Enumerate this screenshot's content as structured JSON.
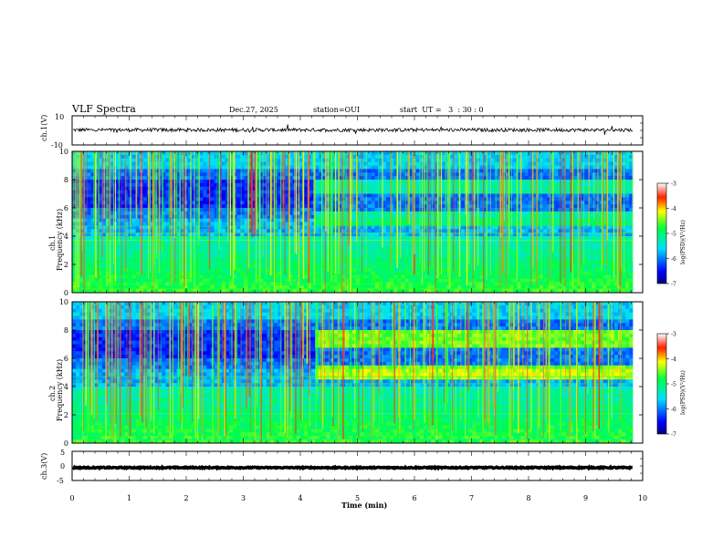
{
  "header": {
    "title": "VLF Spectra",
    "date": "Dec.27, 2025",
    "station": "station=OUI",
    "start": "start  UT =   3  : 30 : 0"
  },
  "chart_data": [
    {
      "type": "line",
      "name": "ch1-waveform",
      "ylabel": "ch.1(V)",
      "ylim": [
        -10,
        10
      ],
      "yticks": [
        "10",
        "-10"
      ],
      "baseline": 0.3,
      "note": "continuous noisy waveform, amplitude about +-1 V with sparse spikes"
    },
    {
      "type": "heatmap",
      "name": "ch1-spectrogram",
      "ylabel": "ch.1\nFrequency (kHz)",
      "ylim": [
        0,
        10
      ],
      "yticks": [
        "0",
        "2",
        "4",
        "6",
        "8",
        "10"
      ],
      "band_change_min": 4.25,
      "bands_after_change_khz": [
        [
          2.3,
          2.8
        ],
        [
          4.6,
          5.0
        ]
      ],
      "colorbar": {
        "label": "log(PSD)(V²/Hz)",
        "range": [
          -7,
          -3
        ],
        "ticks": [
          "-3",
          "-4",
          "-5",
          "-6",
          "-7"
        ]
      }
    },
    {
      "type": "heatmap",
      "name": "ch2-spectrogram",
      "ylabel": "ch.2\nFrequency (kHz)",
      "ylim": [
        0,
        10
      ],
      "yticks": [
        "0",
        "2",
        "4",
        "6",
        "8",
        "10"
      ],
      "band_change_min": 4.25,
      "bands_after_change_khz": [
        [
          2.3,
          2.9
        ],
        [
          4.7,
          5.1
        ]
      ],
      "colorbar": {
        "label": "log(PSD)(V²/Hz)",
        "range": [
          -7,
          -3
        ],
        "ticks": [
          "-3",
          "-4",
          "-5",
          "-6",
          "-7"
        ]
      }
    },
    {
      "type": "line",
      "name": "ch3-waveform",
      "ylabel": "ch.3(V)",
      "ylim": [
        -5,
        5
      ],
      "yticks": [
        "5",
        "0",
        "-5"
      ],
      "baseline": -0.6,
      "note": "thick nearly constant line"
    }
  ],
  "xaxis": {
    "label": "Time (min)",
    "xlim": [
      0,
      10
    ],
    "ticks": [
      "0",
      "1",
      "2",
      "3",
      "4",
      "5",
      "6",
      "7",
      "8",
      "9",
      "10"
    ],
    "data_end_min": 9.83
  }
}
